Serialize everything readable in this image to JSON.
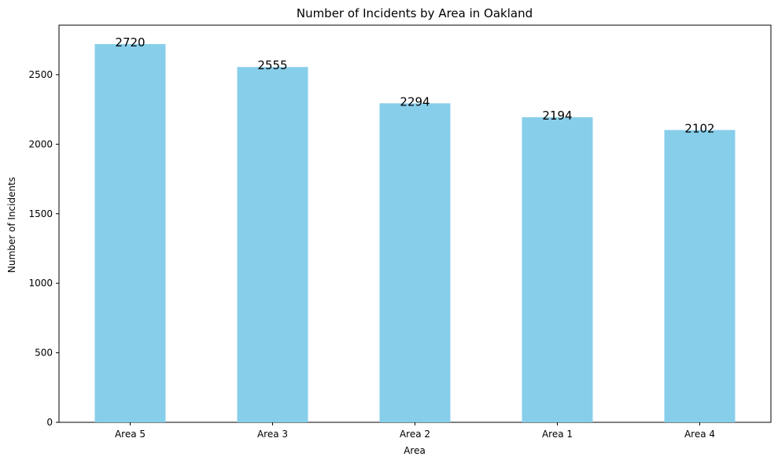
{
  "chart_data": {
    "type": "bar",
    "title": "Number of Incidents by Area in Oakland",
    "xlabel": "Area",
    "ylabel": "Number of Incidents",
    "categories": [
      "Area 5",
      "Area 3",
      "Area 2",
      "Area 1",
      "Area 4"
    ],
    "values": [
      2720,
      2555,
      2294,
      2194,
      2102
    ],
    "ylim": [
      0,
      2856
    ],
    "yticks": [
      0,
      500,
      1000,
      1500,
      2000,
      2500
    ],
    "grid": false,
    "bar_color": "#87ceeb",
    "data_labels": [
      "2720",
      "2555",
      "2294",
      "2194",
      "2102"
    ]
  }
}
